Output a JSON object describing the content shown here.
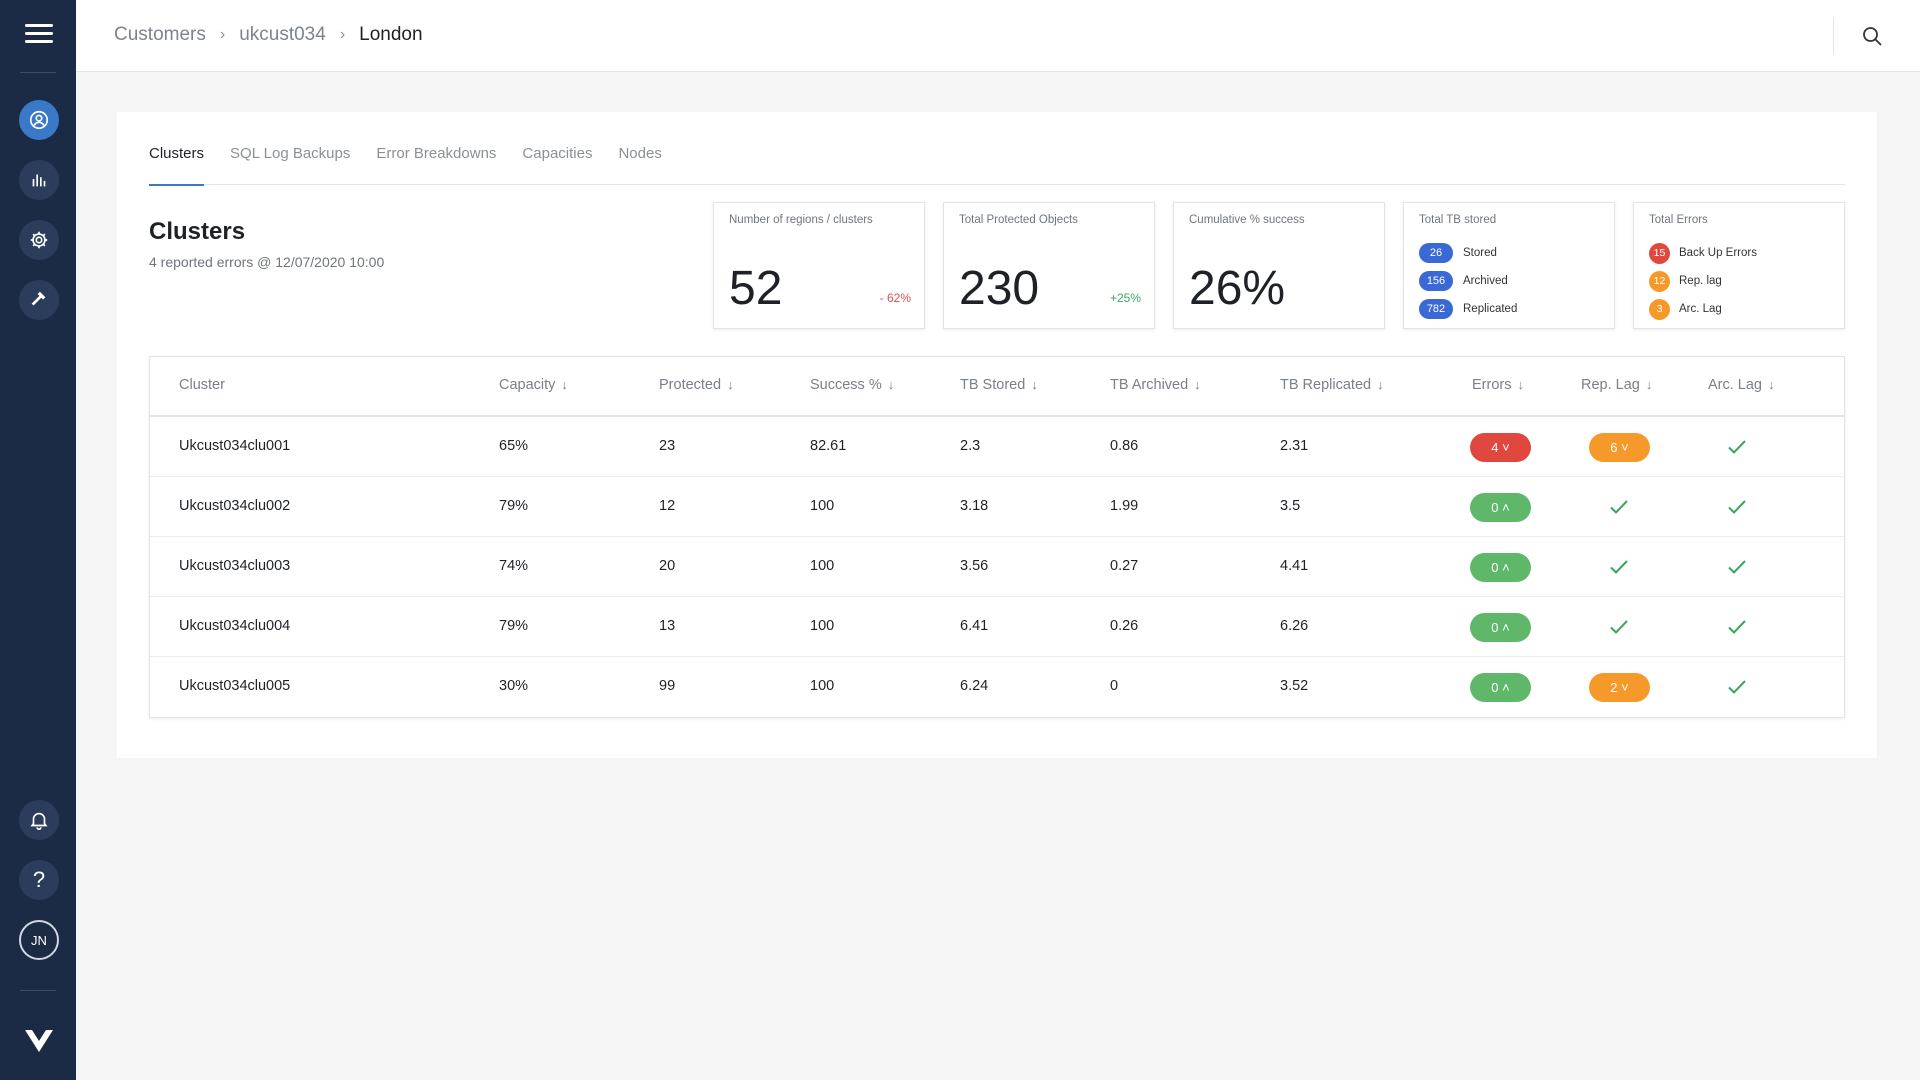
{
  "sidebar": {
    "avatar_initials": "JN",
    "help_glyph": "?",
    "icons": [
      "menu-icon",
      "user-icon",
      "bar-chart-icon",
      "gear-icon",
      "hammer-icon",
      "bell-icon",
      "help-icon",
      "logo-icon"
    ]
  },
  "breadcrumb": {
    "items": [
      "Customers",
      "ukcust034"
    ],
    "current": "London"
  },
  "tabs": [
    "Clusters",
    "SQL Log Backups",
    "Error Breakdowns",
    "Capacities",
    "Nodes"
  ],
  "active_tab": "Clusters",
  "section": {
    "title": "Clusters",
    "subtitle": "4 reported errors @ 12/07/2020 10:00"
  },
  "stats": {
    "regions": {
      "label": "Number of regions / clusters",
      "value": "52",
      "delta": "- 62%"
    },
    "protected": {
      "label": "Total Protected Objects",
      "value": "230",
      "delta": "+25%"
    },
    "success": {
      "label": "Cumulative % success",
      "value": "26%"
    },
    "tb": {
      "label": "Total TB stored",
      "items": [
        {
          "count": "26",
          "label": "Stored"
        },
        {
          "count": "156",
          "label": "Archived"
        },
        {
          "count": "782",
          "label": "Replicated"
        }
      ]
    },
    "errors": {
      "label": "Total Errors",
      "items": [
        {
          "count": "15",
          "label": "Back Up Errors",
          "color": "#e0483f"
        },
        {
          "count": "12",
          "label": "Rep. lag",
          "color": "#f59a2a"
        },
        {
          "count": "3",
          "label": "Arc. Lag",
          "color": "#f59a2a"
        }
      ]
    }
  },
  "table": {
    "headers": [
      "Cluster",
      "Capacity",
      "Protected",
      "Success %",
      "TB Stored",
      "TB Archived",
      "TB Replicated",
      "Errors",
      "Rep. Lag",
      "Arc. Lag"
    ],
    "sort_arrow": "↓",
    "rows": [
      {
        "cluster": "Ukcust034clu001",
        "capacity": "65%",
        "protected": "23",
        "success": "82.61",
        "tb_stored": "2.3",
        "tb_archived": "0.86",
        "tb_replicated": "2.31",
        "errors": "4 ˅",
        "errors_status": "red",
        "rep_lag": "6 ˅",
        "rep_status": "orange",
        "arc_status": "ok"
      },
      {
        "cluster": "Ukcust034clu002",
        "capacity": "79%",
        "protected": "12",
        "success": "100",
        "tb_stored": "3.18",
        "tb_archived": "1.99",
        "tb_replicated": "3.5",
        "errors": "0 ˄",
        "errors_status": "green",
        "rep_status": "ok",
        "arc_status": "ok"
      },
      {
        "cluster": "Ukcust034clu003",
        "capacity": "74%",
        "protected": "20",
        "success": "100",
        "tb_stored": "3.56",
        "tb_archived": "0.27",
        "tb_replicated": "4.41",
        "errors": "0 ˄",
        "errors_status": "green",
        "rep_status": "ok",
        "arc_status": "ok"
      },
      {
        "cluster": "Ukcust034clu004",
        "capacity": "79%",
        "protected": "13",
        "success": "100",
        "tb_stored": "6.41",
        "tb_archived": "0.26",
        "tb_replicated": "6.26",
        "errors": "0 ˄",
        "errors_status": "green",
        "rep_status": "ok",
        "arc_status": "ok"
      },
      {
        "cluster": "Ukcust034clu005",
        "capacity": "30%",
        "protected": "99",
        "success": "100",
        "tb_stored": "6.24",
        "tb_archived": "0",
        "tb_replicated": "3.52",
        "errors": "0 ˄",
        "errors_status": "green",
        "rep_lag": "2 ˅",
        "rep_status": "orange",
        "arc_status": "ok"
      }
    ]
  },
  "colors": {
    "sidebar": "#1c2b45",
    "accent": "#3a79c7",
    "success": "#5fb86a",
    "error": "#e0483f",
    "warning": "#f59a2a"
  }
}
